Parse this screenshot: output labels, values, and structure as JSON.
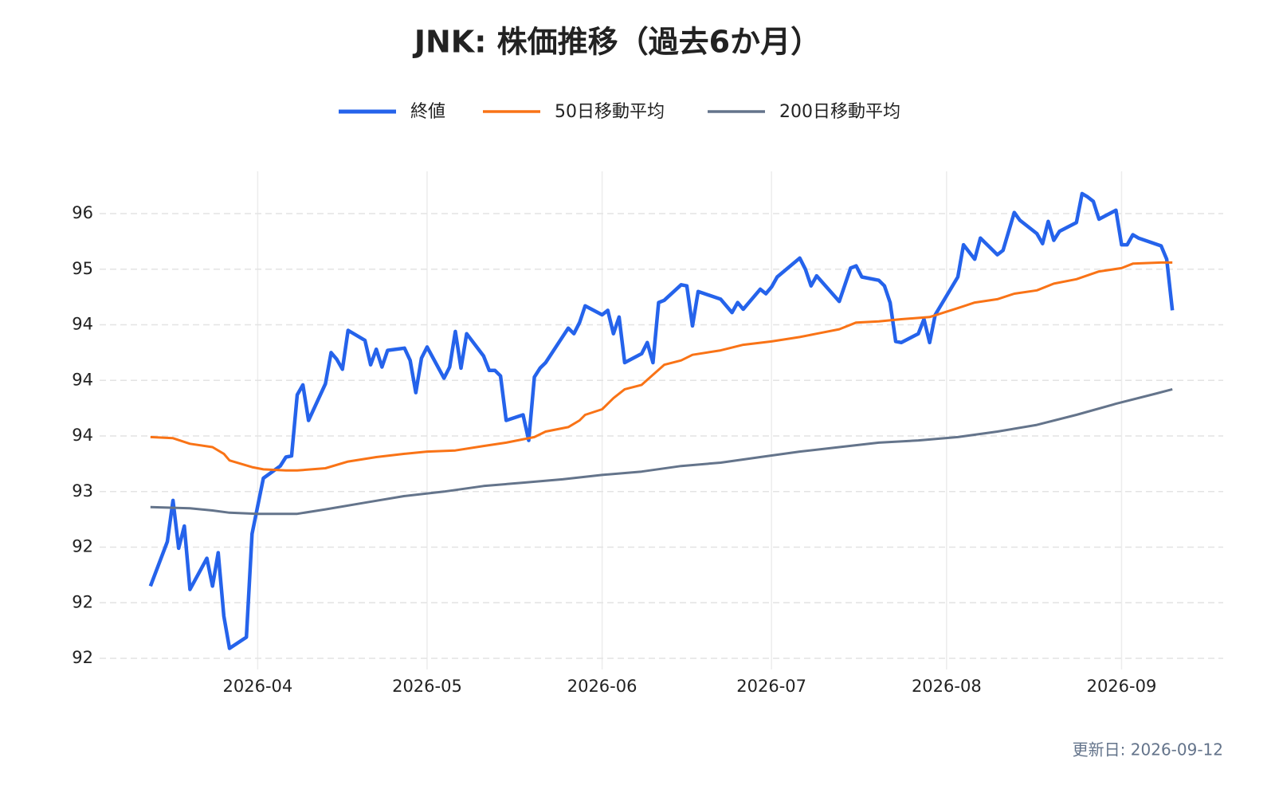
{
  "chart_data": {
    "type": "line",
    "title": "JNK: 株価推移（過去6か月）",
    "footer": "更新日: 2026-09-12",
    "xlim": [
      "2026-03-04",
      "2026-09-19"
    ],
    "xticks": [
      "2026-04",
      "2026-05",
      "2026-06",
      "2026-07",
      "2026-08",
      "2026-09"
    ],
    "ylim": [
      91.4,
      95.88
    ],
    "yticks": [
      {
        "value": 91.5,
        "label": "92"
      },
      {
        "value": 92,
        "label": "92"
      },
      {
        "value": 92.5,
        "label": "92"
      },
      {
        "value": 93,
        "label": "93"
      },
      {
        "value": 93.5,
        "label": "94"
      },
      {
        "value": 94,
        "label": "94"
      },
      {
        "value": 94.5,
        "label": "94"
      },
      {
        "value": 95,
        "label": "95"
      },
      {
        "value": 95.5,
        "label": "96"
      }
    ],
    "grid": true,
    "legend": "top",
    "series": [
      {
        "name": "終値",
        "color": "#2563eb",
        "x": [
          "2026-03-13",
          "2026-03-16",
          "2026-03-17",
          "2026-03-18",
          "2026-03-19",
          "2026-03-20",
          "2026-03-23",
          "2026-03-24",
          "2026-03-25",
          "2026-03-26",
          "2026-03-27",
          "2026-03-30",
          "2026-03-31",
          "2026-04-02",
          "2026-04-05",
          "2026-04-06",
          "2026-04-07",
          "2026-04-08",
          "2026-04-09",
          "2026-04-10",
          "2026-04-13",
          "2026-04-14",
          "2026-04-15",
          "2026-04-16",
          "2026-04-17",
          "2026-04-20",
          "2026-04-21",
          "2026-04-22",
          "2026-04-23",
          "2026-04-24",
          "2026-04-27",
          "2026-04-28",
          "2026-04-29",
          "2026-04-30",
          "2026-05-01",
          "2026-05-04",
          "2026-05-05",
          "2026-05-06",
          "2026-05-07",
          "2026-05-08",
          "2026-05-11",
          "2026-05-12",
          "2026-05-13",
          "2026-05-14",
          "2026-05-15",
          "2026-05-18",
          "2026-05-19",
          "2026-05-20",
          "2026-05-21",
          "2026-05-22",
          "2026-05-26",
          "2026-05-27",
          "2026-05-28",
          "2026-05-29",
          "2026-06-01",
          "2026-06-02",
          "2026-06-03",
          "2026-06-04",
          "2026-06-05",
          "2026-06-08",
          "2026-06-09",
          "2026-06-10",
          "2026-06-11",
          "2026-06-12",
          "2026-06-15",
          "2026-06-16",
          "2026-06-17",
          "2026-06-18",
          "2026-06-22",
          "2026-06-24",
          "2026-06-25",
          "2026-06-26",
          "2026-06-29",
          "2026-06-30",
          "2026-07-01",
          "2026-07-02",
          "2026-07-06",
          "2026-07-07",
          "2026-07-08",
          "2026-07-09",
          "2026-07-13",
          "2026-07-15",
          "2026-07-16",
          "2026-07-17",
          "2026-07-20",
          "2026-07-21",
          "2026-07-22",
          "2026-07-23",
          "2026-07-24",
          "2026-07-27",
          "2026-07-28",
          "2026-07-29",
          "2026-07-30",
          "2026-08-03",
          "2026-08-04",
          "2026-08-06",
          "2026-08-07",
          "2026-08-10",
          "2026-08-11",
          "2026-08-13",
          "2026-08-14",
          "2026-08-17",
          "2026-08-18",
          "2026-08-19",
          "2026-08-20",
          "2026-08-21",
          "2026-08-24",
          "2026-08-25",
          "2026-08-26",
          "2026-08-27",
          "2026-08-28",
          "2026-08-31",
          "2026-09-01",
          "2026-09-02",
          "2026-09-03",
          "2026-09-04",
          "2026-09-08",
          "2026-09-09",
          "2026-09-10"
        ],
        "values": [
          92.15,
          92.55,
          92.92,
          92.49,
          92.69,
          92.12,
          92.4,
          92.15,
          92.45,
          91.88,
          91.59,
          91.69,
          92.62,
          93.12,
          93.23,
          93.31,
          93.32,
          93.87,
          93.96,
          93.64,
          93.97,
          94.25,
          94.19,
          94.1,
          94.45,
          94.36,
          94.14,
          94.28,
          94.12,
          94.27,
          94.29,
          94.18,
          93.89,
          94.2,
          94.3,
          94.02,
          94.12,
          94.44,
          94.11,
          94.42,
          94.22,
          94.09,
          94.09,
          94.04,
          93.64,
          93.69,
          93.46,
          94.03,
          94.11,
          94.16,
          94.47,
          94.42,
          94.52,
          94.67,
          94.59,
          94.63,
          94.42,
          94.57,
          94.16,
          94.24,
          94.34,
          94.16,
          94.7,
          94.72,
          94.86,
          94.85,
          94.49,
          94.8,
          94.73,
          94.61,
          94.7,
          94.64,
          94.82,
          94.78,
          94.84,
          94.93,
          95.1,
          95,
          94.85,
          94.94,
          94.71,
          95.01,
          95.03,
          94.93,
          94.9,
          94.85,
          94.7,
          94.35,
          94.34,
          94.42,
          94.55,
          94.34,
          94.59,
          94.93,
          95.22,
          95.09,
          95.28,
          95.13,
          95.17,
          95.51,
          95.44,
          95.32,
          95.23,
          95.43,
          95.26,
          95.34,
          95.42,
          95.68,
          95.65,
          95.61,
          95.45,
          95.53,
          95.22,
          95.22,
          95.31,
          95.28,
          95.21,
          95.09,
          94.63
        ]
      },
      {
        "name": "50日移動平均",
        "color": "#f97316",
        "x": [
          "2026-03-13",
          "2026-03-17",
          "2026-03-20",
          "2026-03-24",
          "2026-03-26",
          "2026-03-27",
          "2026-03-31",
          "2026-04-02",
          "2026-04-06",
          "2026-04-08",
          "2026-04-13",
          "2026-04-17",
          "2026-04-22",
          "2026-04-27",
          "2026-05-01",
          "2026-05-06",
          "2026-05-11",
          "2026-05-15",
          "2026-05-20",
          "2026-05-22",
          "2026-05-26",
          "2026-05-28",
          "2026-05-29",
          "2026-06-01",
          "2026-06-03",
          "2026-06-05",
          "2026-06-08",
          "2026-06-10",
          "2026-06-12",
          "2026-06-15",
          "2026-06-17",
          "2026-06-22",
          "2026-06-26",
          "2026-07-01",
          "2026-07-06",
          "2026-07-09",
          "2026-07-13",
          "2026-07-16",
          "2026-07-20",
          "2026-07-24",
          "2026-07-29",
          "2026-08-03",
          "2026-08-06",
          "2026-08-10",
          "2026-08-13",
          "2026-08-17",
          "2026-08-20",
          "2026-08-24",
          "2026-08-28",
          "2026-09-01",
          "2026-09-03",
          "2026-09-08",
          "2026-09-10"
        ],
        "values": [
          93.49,
          93.48,
          93.43,
          93.4,
          93.34,
          93.28,
          93.22,
          93.2,
          93.19,
          93.19,
          93.21,
          93.27,
          93.31,
          93.34,
          93.36,
          93.37,
          93.41,
          93.44,
          93.49,
          93.54,
          93.58,
          93.64,
          93.69,
          93.74,
          93.84,
          93.92,
          93.96,
          94.05,
          94.14,
          94.18,
          94.23,
          94.27,
          94.32,
          94.35,
          94.39,
          94.42,
          94.46,
          94.52,
          94.53,
          94.55,
          94.57,
          94.65,
          94.7,
          94.73,
          94.78,
          94.81,
          94.87,
          94.91,
          94.98,
          95.01,
          95.05,
          95.06,
          95.06
        ]
      },
      {
        "name": "200日移動平均",
        "color": "#64748b",
        "x": [
          "2026-03-13",
          "2026-03-20",
          "2026-03-24",
          "2026-03-27",
          "2026-04-01",
          "2026-04-08",
          "2026-04-13",
          "2026-04-20",
          "2026-04-27",
          "2026-05-04",
          "2026-05-11",
          "2026-05-18",
          "2026-05-25",
          "2026-06-01",
          "2026-06-08",
          "2026-06-15",
          "2026-06-22",
          "2026-06-29",
          "2026-07-06",
          "2026-07-13",
          "2026-07-20",
          "2026-07-27",
          "2026-08-03",
          "2026-08-10",
          "2026-08-17",
          "2026-08-24",
          "2026-08-31",
          "2026-09-07",
          "2026-09-10"
        ],
        "values": [
          92.86,
          92.85,
          92.83,
          92.81,
          92.8,
          92.8,
          92.84,
          92.9,
          92.96,
          93,
          93.05,
          93.08,
          93.11,
          93.15,
          93.18,
          93.23,
          93.26,
          93.31,
          93.36,
          93.4,
          93.44,
          93.46,
          93.49,
          93.54,
          93.6,
          93.69,
          93.79,
          93.88,
          93.92
        ]
      }
    ]
  }
}
